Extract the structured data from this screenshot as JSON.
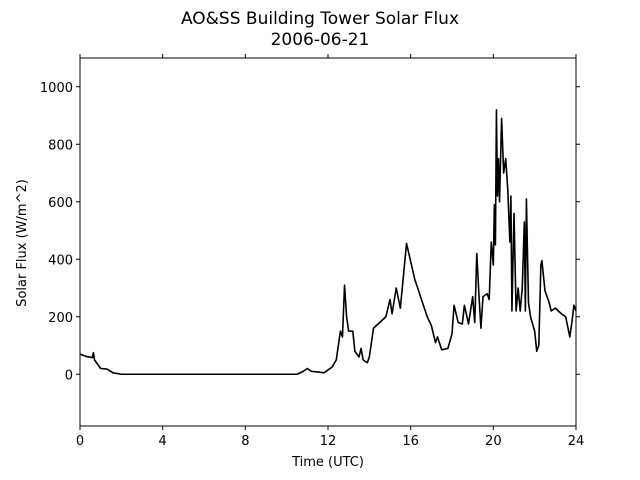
{
  "chart_data": {
    "type": "line",
    "title": "AO&SS Building Tower Solar Flux",
    "subtitle": "2006-06-21",
    "x_label": "Time (UTC)",
    "y_label": "Solar Flux (W/m^2)",
    "xlim": [
      0,
      24
    ],
    "ylim": [
      -180,
      1100
    ],
    "xticks": [
      0,
      4,
      8,
      12,
      16,
      20,
      24
    ],
    "yticks": [
      0,
      200,
      400,
      600,
      800,
      1000
    ],
    "grid": false,
    "x": [
      0,
      0.3,
      0.6,
      0.65,
      0.7,
      1.0,
      1.3,
      1.6,
      2,
      4,
      8,
      10.5,
      10.8,
      11,
      11.2,
      11.5,
      11.8,
      12,
      12.2,
      12.4,
      12.6,
      12.7,
      12.8,
      12.9,
      13,
      13.2,
      13.3,
      13.5,
      13.6,
      13.7,
      13.9,
      14,
      14.2,
      14.5,
      14.8,
      15,
      15.1,
      15.3,
      15.5,
      15.8,
      16.2,
      16.8,
      17,
      17.2,
      17.3,
      17.5,
      17.8,
      18,
      18.1,
      18.3,
      18.5,
      18.6,
      18.8,
      19,
      19.1,
      19.2,
      19.3,
      19.4,
      19.5,
      19.7,
      19.8,
      19.9,
      20,
      20.05,
      20.1,
      20.15,
      20.2,
      20.25,
      20.3,
      20.4,
      20.5,
      20.6,
      20.7,
      20.8,
      20.85,
      20.9,
      21,
      21.1,
      21.2,
      21.3,
      21.4,
      21.5,
      21.55,
      21.6,
      21.7,
      21.8,
      22,
      22.1,
      22.2,
      22.3,
      22.35,
      22.5,
      22.7,
      22.8,
      23,
      23.3,
      23.5,
      23.7,
      23.8,
      23.9,
      24
    ],
    "series": [
      {
        "name": "Solar Flux",
        "color": "#000000",
        "values": [
          70,
          62,
          58,
          75,
          50,
          20,
          18,
          5,
          0,
          0,
          0,
          0,
          10,
          20,
          10,
          8,
          5,
          15,
          25,
          50,
          150,
          130,
          310,
          200,
          150,
          150,
          80,
          60,
          90,
          50,
          40,
          60,
          160,
          180,
          200,
          260,
          210,
          300,
          230,
          455,
          330,
          200,
          170,
          110,
          130,
          85,
          90,
          140,
          240,
          180,
          175,
          240,
          175,
          270,
          180,
          420,
          280,
          160,
          270,
          280,
          260,
          460,
          380,
          590,
          450,
          920,
          620,
          750,
          600,
          890,
          700,
          750,
          640,
          460,
          620,
          220,
          560,
          220,
          300,
          220,
          300,
          530,
          220,
          610,
          250,
          200,
          150,
          80,
          100,
          380,
          395,
          290,
          250,
          220,
          230,
          210,
          200,
          130,
          180,
          240,
          220
        ]
      }
    ]
  }
}
